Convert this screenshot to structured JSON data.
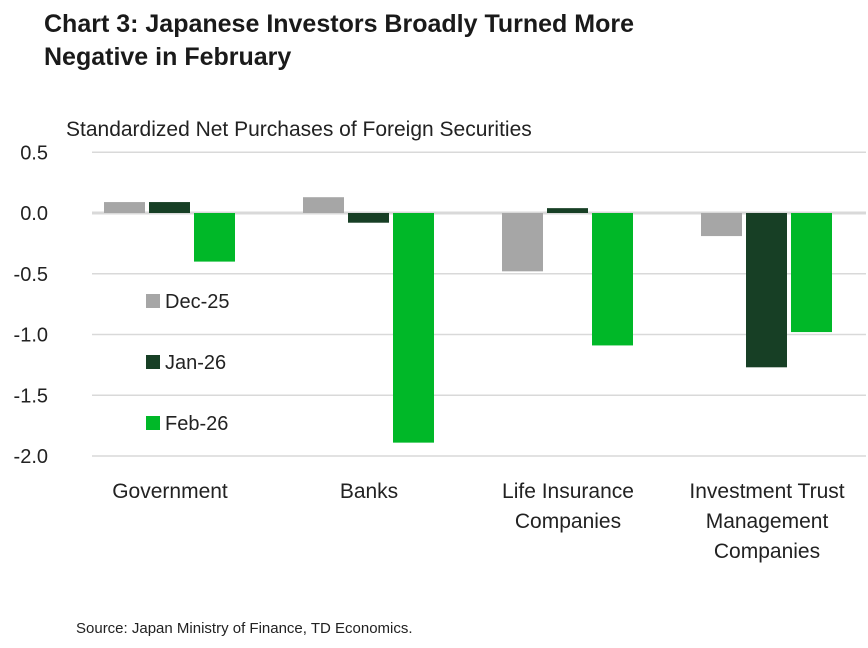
{
  "chart_data": {
    "type": "bar",
    "title": "Chart 3: Japanese Investors Broadly Turned More Negative in February",
    "ylabel": "Standardized Net Purchases of Foreign Securities",
    "xlabel": "",
    "categories": [
      [
        "Government"
      ],
      [
        "Banks"
      ],
      [
        "Life Insurance",
        "Companies"
      ],
      [
        "Investment Trust",
        "Management",
        "Companies"
      ]
    ],
    "series": [
      {
        "name": "Dec-25",
        "color": "#a6a6a6",
        "values": [
          0.09,
          0.13,
          -0.48,
          -0.19
        ]
      },
      {
        "name": "Jan-26",
        "color": "#173f25",
        "values": [
          0.09,
          -0.08,
          0.04,
          -1.27
        ]
      },
      {
        "name": "Feb-26",
        "color": "#00b828",
        "values": [
          -0.4,
          -1.89,
          -1.09,
          -0.98
        ]
      }
    ],
    "ylim": [
      -2.0,
      0.5
    ],
    "yticks": [
      "0.5",
      "0.0",
      "-0.5",
      "-1.0",
      "-1.5",
      "-2.0"
    ],
    "ytick_values": [
      0.5,
      0.0,
      -0.5,
      -1.0,
      -1.5,
      -2.0
    ],
    "grid": true,
    "legend_placement": "left-inside"
  },
  "source": "Source: Japan Ministry of Finance, TD Economics."
}
